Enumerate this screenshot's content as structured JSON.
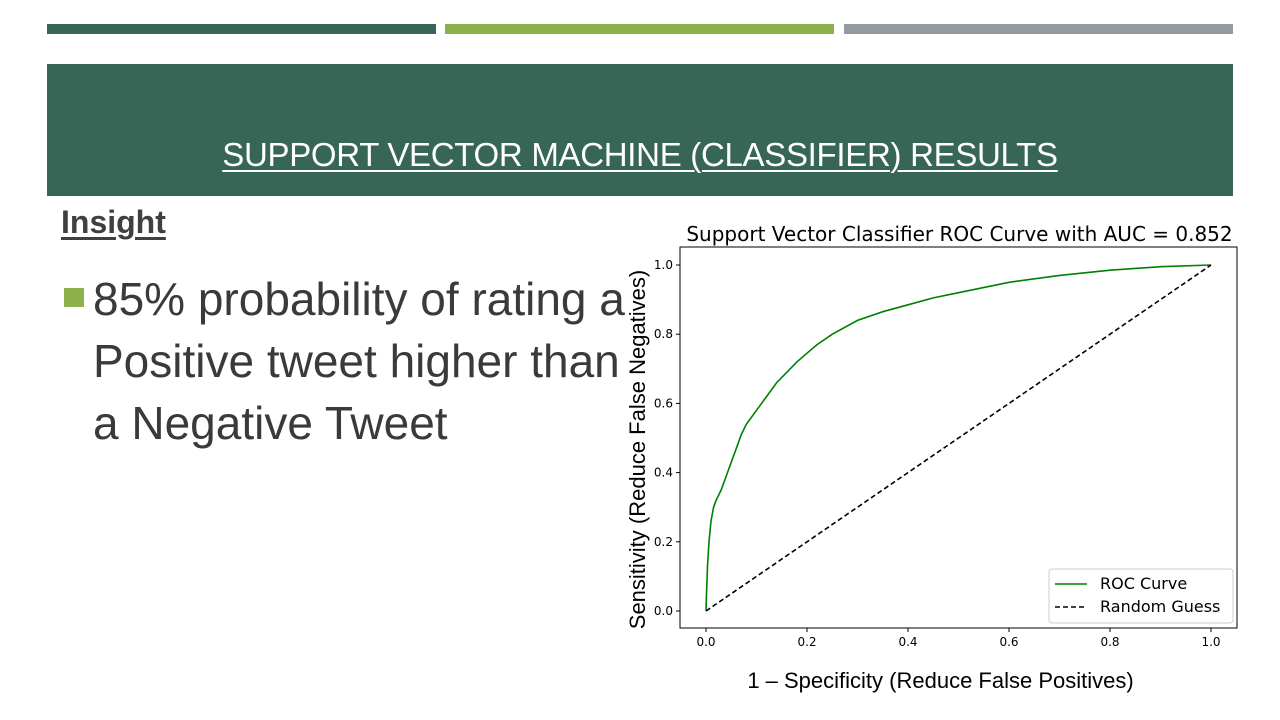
{
  "colors": {
    "bar1": "#376556",
    "bar2": "#8db24b",
    "bar3": "#959ba0",
    "header_bg": "#376556",
    "bullet": "#8db24b",
    "roc": "#008000",
    "random": "#000000"
  },
  "slide": {
    "title": "SUPPORT VECTOR MACHINE (CLASSIFIER) RESULTS",
    "insight_heading": "Insight",
    "bullet_text": "85% probability of rating a Positive tweet higher than a Negative Tweet"
  },
  "chart_data": {
    "type": "line",
    "title": "Support Vector Classifier ROC Curve with AUC = 0.852",
    "xlabel": "1 – Specificity (Reduce False Positives)",
    "ylabel": "Sensitivity (Reduce False Negatives)",
    "xlim": [
      0,
      1
    ],
    "ylim": [
      0,
      1
    ],
    "xticks": [
      "0.0",
      "0.2",
      "0.4",
      "0.6",
      "0.8",
      "1.0"
    ],
    "yticks": [
      "0.0",
      "0.2",
      "0.4",
      "0.6",
      "0.8",
      "1.0"
    ],
    "grid": false,
    "legend_position": "bottom-right",
    "series": [
      {
        "name": "ROC Curve",
        "style": "solid",
        "x": [
          0,
          0.001,
          0.003,
          0.006,
          0.01,
          0.015,
          0.02,
          0.03,
          0.04,
          0.05,
          0.06,
          0.07,
          0.08,
          0.1,
          0.12,
          0.14,
          0.16,
          0.18,
          0.2,
          0.22,
          0.25,
          0.3,
          0.35,
          0.4,
          0.45,
          0.5,
          0.6,
          0.7,
          0.8,
          0.9,
          1.0
        ],
        "y": [
          0,
          0.05,
          0.13,
          0.2,
          0.26,
          0.3,
          0.32,
          0.35,
          0.39,
          0.43,
          0.47,
          0.51,
          0.54,
          0.58,
          0.62,
          0.66,
          0.69,
          0.72,
          0.745,
          0.77,
          0.8,
          0.84,
          0.865,
          0.885,
          0.905,
          0.92,
          0.95,
          0.97,
          0.985,
          0.995,
          1.0
        ]
      },
      {
        "name": "Random Guess",
        "style": "dashed",
        "x": [
          0,
          1
        ],
        "y": [
          0,
          1
        ]
      }
    ]
  }
}
